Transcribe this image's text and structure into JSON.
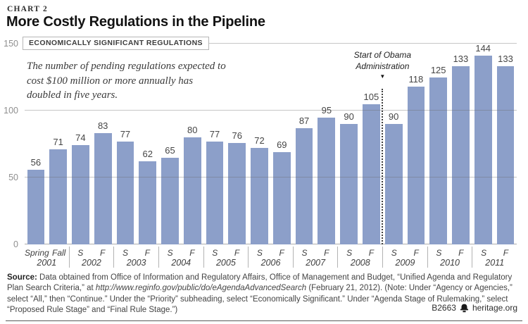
{
  "header": {
    "kicker": "CHART 2",
    "title": "More Costly Regulations in the Pipeline"
  },
  "chart_data": {
    "type": "bar",
    "title": "More Costly Regulations in the Pipeline",
    "series_label_box": "ECONOMICALLY SIGNIFICANT REGULATIONS",
    "annotation": "The number of pending regulations expected to\ncost $100 million or more annually has\ndoubled in five years.",
    "bar_color": "#8c9fc9",
    "ylim": [
      0,
      150
    ],
    "yticks": [
      0,
      50,
      100,
      150
    ],
    "grid": true,
    "values": [
      56,
      71,
      74,
      83,
      77,
      62,
      65,
      80,
      77,
      76,
      72,
      69,
      87,
      95,
      90,
      105,
      90,
      118,
      125,
      133,
      144,
      133
    ],
    "x_groups": [
      {
        "year": "2001",
        "seasons": [
          "Spring",
          "Fall"
        ]
      },
      {
        "year": "2002",
        "seasons": [
          "S",
          "F"
        ]
      },
      {
        "year": "2003",
        "seasons": [
          "S",
          "F"
        ]
      },
      {
        "year": "2004",
        "seasons": [
          "S",
          "F"
        ]
      },
      {
        "year": "2005",
        "seasons": [
          "S",
          "F"
        ]
      },
      {
        "year": "2006",
        "seasons": [
          "S",
          "F"
        ]
      },
      {
        "year": "2007",
        "seasons": [
          "S",
          "F"
        ]
      },
      {
        "year": "2008",
        "seasons": [
          "S",
          "F"
        ]
      },
      {
        "year": "2009",
        "seasons": [
          "S",
          "F"
        ]
      },
      {
        "year": "2010",
        "seasons": [
          "S",
          "F"
        ]
      },
      {
        "year": "2011",
        "seasons": [
          "S",
          "F"
        ]
      }
    ],
    "event_marker": {
      "label": "Start of Obama\nAdministration",
      "arrow_glyph": "▼",
      "after_index": 15
    }
  },
  "footer": {
    "source": {
      "label": "Source:",
      "pre_url": " Data obtained from Office of Information and Regulatory Affairs, Office of Management and Budget, “Unified Agenda and Regulatory Plan Search Criteria,” at ",
      "url": "http://www.reginfo.gov/public/do/eAgendaAdvancedSearch",
      "post_url": " (February 21, 2012). (Note: Under “Agency or Agencies,” select “All,” then “Continue.” Under the “Priority” subheading, select “Economically Significant.” Under “Agenda Stage of Rulemaking,” select “Proposed Rule Stage” and “Final Rule Stage.”)"
    },
    "doc_id": "B2663",
    "site": "heritage.org",
    "bell_icon": "heritage-bell"
  }
}
